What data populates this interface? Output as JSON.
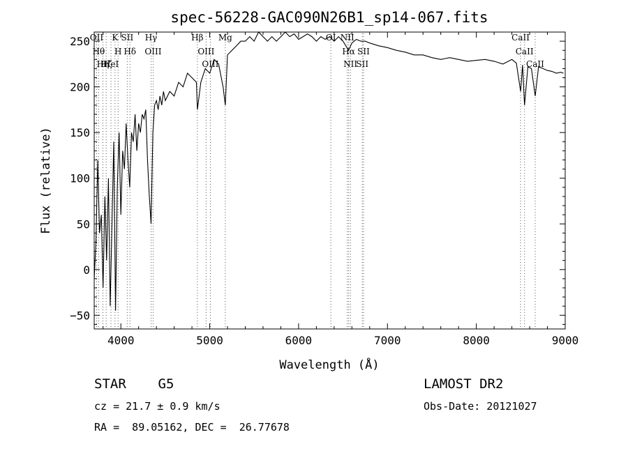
{
  "chart_data": {
    "type": "line",
    "title": "spec-56228-GAC090N26B1_sp14-067.fits",
    "xlabel": "Wavelength (Å)",
    "ylabel": "Flux (relative)",
    "xlim": [
      3700,
      9000
    ],
    "ylim": [
      -65,
      260
    ],
    "xticks": [
      4000,
      5000,
      6000,
      7000,
      8000,
      9000
    ],
    "yticks": [
      -50,
      0,
      50,
      100,
      150,
      200,
      250
    ],
    "grid": false,
    "series": [
      {
        "x": [
          3700,
          3720,
          3740,
          3760,
          3780,
          3800,
          3820,
          3840,
          3860,
          3880,
          3900,
          3920,
          3940,
          3960,
          3980,
          4000,
          4020,
          4040,
          4060,
          4080,
          4100,
          4120,
          4140,
          4160,
          4180,
          4200,
          4220,
          4240,
          4260,
          4280,
          4300,
          4320,
          4340,
          4360,
          4380,
          4400,
          4420,
          4440,
          4460,
          4480,
          4500,
          4550,
          4600,
          4650,
          4700,
          4750,
          4800,
          4850,
          4861,
          4900,
          4950,
          5000,
          5050,
          5100,
          5150,
          5175,
          5200,
          5250,
          5300,
          5350,
          5400,
          5450,
          5500,
          5550,
          5600,
          5650,
          5700,
          5750,
          5800,
          5850,
          5900,
          5950,
          6000,
          6050,
          6100,
          6150,
          6200,
          6250,
          6300,
          6350,
          6400,
          6450,
          6500,
          6563,
          6600,
          6650,
          6700,
          6750,
          6800,
          6900,
          7000,
          7100,
          7200,
          7300,
          7400,
          7500,
          7600,
          7700,
          7800,
          7900,
          8000,
          8100,
          8200,
          8300,
          8400,
          8450,
          8498,
          8520,
          8542,
          8580,
          8620,
          8662,
          8700,
          8750,
          8800,
          8850,
          8900,
          8950,
          8980
        ],
        "y": [
          -10,
          30,
          120,
          40,
          60,
          -20,
          80,
          10,
          100,
          -40,
          50,
          140,
          -45,
          90,
          150,
          60,
          130,
          110,
          160,
          120,
          90,
          150,
          140,
          170,
          130,
          160,
          150,
          170,
          165,
          175,
          120,
          80,
          50,
          150,
          180,
          185,
          175,
          190,
          180,
          195,
          185,
          195,
          190,
          205,
          200,
          215,
          210,
          205,
          175,
          205,
          220,
          215,
          230,
          225,
          200,
          180,
          235,
          240,
          245,
          250,
          250,
          255,
          250,
          260,
          255,
          250,
          255,
          250,
          255,
          260,
          255,
          258,
          252,
          255,
          258,
          255,
          250,
          255,
          252,
          255,
          250,
          255,
          250,
          240,
          248,
          252,
          250,
          250,
          248,
          245,
          243,
          240,
          238,
          235,
          235,
          232,
          230,
          232,
          230,
          228,
          229,
          230,
          228,
          225,
          230,
          226,
          195,
          224,
          180,
          222,
          220,
          190,
          222,
          220,
          218,
          217,
          215,
          216,
          215
        ]
      }
    ],
    "lines": [
      {
        "x": 3727,
        "label": "OII"
      },
      {
        "x": 3750,
        "label": "Hθ"
      },
      {
        "x": 3798,
        "label": "Hη"
      },
      {
        "x": 3835,
        "label": "Hζ"
      },
      {
        "x": 3889,
        "label": "HeI"
      },
      {
        "x": 3934,
        "label": "K"
      },
      {
        "x": 3969,
        "label": "H"
      },
      {
        "x": 4072,
        "label": "SII"
      },
      {
        "x": 4102,
        "label": "Hδ"
      },
      {
        "x": 4340,
        "label": "Hγ"
      },
      {
        "x": 4363,
        "label": "OIII"
      },
      {
        "x": 4861,
        "label": "Hβ"
      },
      {
        "x": 4959,
        "label": "OIII"
      },
      {
        "x": 5007,
        "label": "OIII"
      },
      {
        "x": 5175,
        "label": "Mg"
      },
      {
        "x": 6363,
        "label": "OI"
      },
      {
        "x": 6548,
        "label": "NII"
      },
      {
        "x": 6563,
        "label": "Hα"
      },
      {
        "x": 6583,
        "label": "NII"
      },
      {
        "x": 6717,
        "label": "SII"
      },
      {
        "x": 6731,
        "label": "SII"
      },
      {
        "x": 8498,
        "label": "CaII"
      },
      {
        "x": 8542,
        "label": "CaII"
      },
      {
        "x": 8662,
        "label": "CaII"
      }
    ]
  },
  "info": {
    "object_class": "STAR    G5",
    "survey": "LAMOST DR2",
    "redshift": "cz = 21.7 ± 0.9 km/s",
    "obs_date": "Obs-Date: 20121027",
    "coords": "RA =  89.05162, DEC =  26.77678"
  }
}
